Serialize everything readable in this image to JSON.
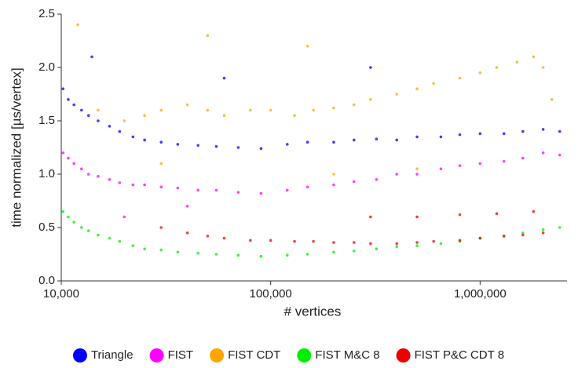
{
  "chart_data": {
    "type": "scatter",
    "x_label": "# vertices",
    "y_label": "time normalized [µs/vertex]",
    "x_log": true,
    "xlim": [
      10000,
      2600000
    ],
    "xticks": [
      {
        "value": 10000,
        "label": "10,000"
      },
      {
        "value": 100000,
        "label": "100,000"
      },
      {
        "value": 1000000,
        "label": "1,000,000"
      }
    ],
    "ylim": [
      0,
      2.5
    ],
    "yticks": [
      {
        "value": 0,
        "label": "0.0"
      },
      0.5,
      {
        "value": 1,
        "label": "1.0"
      },
      1.5,
      {
        "value": 2,
        "label": "2.0"
      },
      2.5
    ],
    "legend": "bottom",
    "series": [
      {
        "name": "Triangle",
        "color": "#0000ff",
        "x": [
          10200,
          10800,
          11500,
          12500,
          13500,
          15000,
          17000,
          19000,
          22000,
          25000,
          30000,
          36000,
          45000,
          55000,
          70000,
          90000,
          120000,
          150000,
          200000,
          250000,
          320000,
          400000,
          500000,
          650000,
          800000,
          1000000,
          1300000,
          1600000,
          2000000,
          2400000,
          14000,
          60000,
          300000
        ],
        "values": [
          1.8,
          1.7,
          1.65,
          1.6,
          1.55,
          1.5,
          1.45,
          1.4,
          1.35,
          1.32,
          1.3,
          1.28,
          1.27,
          1.26,
          1.25,
          1.24,
          1.28,
          1.3,
          1.3,
          1.32,
          1.33,
          1.32,
          1.35,
          1.35,
          1.37,
          1.38,
          1.38,
          1.4,
          1.42,
          1.4,
          2.1,
          1.9,
          2.0
        ]
      },
      {
        "name": "FIST",
        "color": "#ff00ff",
        "x": [
          10200,
          10800,
          11500,
          12500,
          13500,
          15000,
          17000,
          19000,
          22000,
          25000,
          30000,
          36000,
          45000,
          55000,
          70000,
          90000,
          120000,
          150000,
          200000,
          250000,
          320000,
          400000,
          500000,
          650000,
          800000,
          1000000,
          1300000,
          1600000,
          2000000,
          2400000,
          20000,
          40000
        ],
        "values": [
          1.2,
          1.15,
          1.1,
          1.05,
          1.0,
          0.98,
          0.95,
          0.92,
          0.9,
          0.9,
          0.88,
          0.87,
          0.85,
          0.85,
          0.83,
          0.82,
          0.85,
          0.88,
          0.9,
          0.93,
          0.95,
          1.0,
          1.0,
          1.05,
          1.08,
          1.1,
          1.12,
          1.15,
          1.2,
          1.18,
          0.6,
          0.7
        ]
      },
      {
        "name": "FIST CDT",
        "color": "#ffa500",
        "x": [
          12000,
          15000,
          20000,
          25000,
          30000,
          40000,
          50000,
          60000,
          80000,
          100000,
          130000,
          160000,
          200000,
          250000,
          300000,
          400000,
          500000,
          600000,
          800000,
          1000000,
          1200000,
          1500000,
          1800000,
          2000000,
          30000,
          200000,
          500000,
          50000,
          150000,
          2200000
        ],
        "values": [
          2.4,
          1.6,
          1.5,
          1.55,
          1.6,
          1.65,
          1.6,
          1.55,
          1.6,
          1.6,
          1.55,
          1.6,
          1.62,
          1.65,
          1.7,
          1.75,
          1.8,
          1.85,
          1.9,
          1.95,
          2.0,
          2.05,
          2.1,
          2.0,
          1.1,
          1.0,
          1.05,
          2.3,
          2.2,
          1.7
        ]
      },
      {
        "name": "FIST M&C 8",
        "color": "#00ee00",
        "x": [
          10200,
          10800,
          11500,
          12500,
          13500,
          15000,
          17000,
          19000,
          22000,
          25000,
          30000,
          36000,
          45000,
          55000,
          70000,
          90000,
          120000,
          150000,
          200000,
          250000,
          320000,
          400000,
          500000,
          650000,
          800000,
          1000000,
          1300000,
          1600000,
          2000000,
          2400000
        ],
        "values": [
          0.65,
          0.6,
          0.55,
          0.5,
          0.47,
          0.43,
          0.4,
          0.37,
          0.33,
          0.3,
          0.29,
          0.27,
          0.26,
          0.25,
          0.24,
          0.23,
          0.24,
          0.25,
          0.27,
          0.28,
          0.3,
          0.32,
          0.33,
          0.35,
          0.37,
          0.4,
          0.42,
          0.45,
          0.48,
          0.5
        ]
      },
      {
        "name": "FIST P&C CDT 8",
        "color": "#ee0000",
        "x": [
          30000,
          40000,
          50000,
          60000,
          80000,
          100000,
          130000,
          160000,
          200000,
          250000,
          300000,
          400000,
          500000,
          600000,
          800000,
          1000000,
          1300000,
          1600000,
          2000000,
          300000,
          500000,
          800000,
          1200000,
          1800000
        ],
        "values": [
          0.5,
          0.45,
          0.42,
          0.4,
          0.38,
          0.38,
          0.37,
          0.37,
          0.36,
          0.36,
          0.35,
          0.35,
          0.36,
          0.37,
          0.38,
          0.4,
          0.42,
          0.43,
          0.45,
          0.6,
          0.6,
          0.62,
          0.63,
          0.65
        ]
      }
    ]
  }
}
